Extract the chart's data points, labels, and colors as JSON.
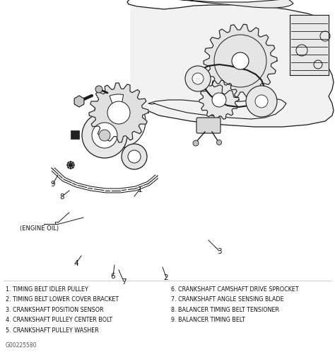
{
  "figsize": [
    4.74,
    5.02
  ],
  "dpi": 100,
  "bg_color": "#ffffff",
  "legend_items_left": [
    "1. TIMING BELT IDLER PULLEY",
    "2. TIMING BELT LOWER COVER BRACKET",
    "3. CRANKSHAFT POSITION SENSOR",
    "4. CRANKSHAFT PULLEY CENTER BOLT",
    "5. CRANKSHAFT PULLEY WASHER"
  ],
  "legend_items_right": [
    "6. CRANKSHAFT CAMSHAFT DRIVE SPROCKET",
    "7. CRANKSHAFT ANGLE SENSING BLADE",
    "8. BALANCER TIMING BELT TENSIONER",
    "9. BALANCER TIMING BELT"
  ],
  "diagram_code": "G00225580",
  "font_size_legend": 5.8,
  "font_size_numbers": 7.5,
  "line_color": "#1a1a1a",
  "text_color": "#111111",
  "bg_color_diagram": "#f8f8f8"
}
